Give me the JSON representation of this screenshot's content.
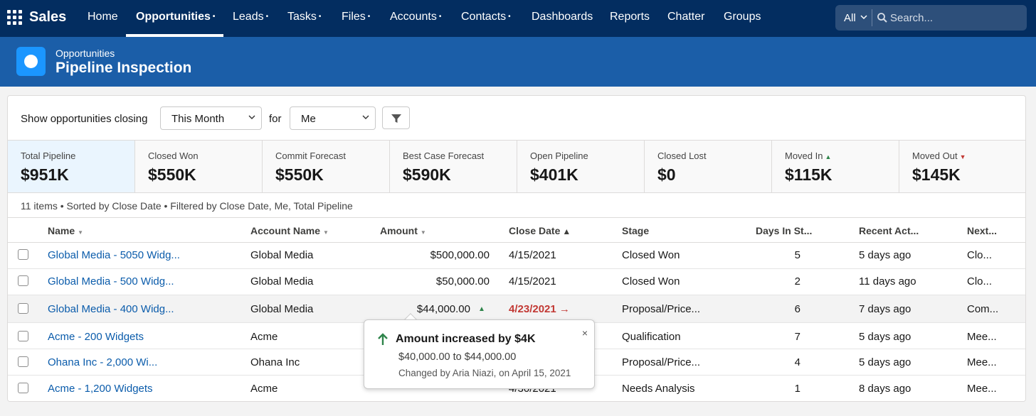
{
  "app": {
    "name": "Sales"
  },
  "nav": {
    "items": [
      {
        "label": "Home",
        "caret": ""
      },
      {
        "label": "Opportunities",
        "caret": "•"
      },
      {
        "label": "Leads",
        "caret": "•"
      },
      {
        "label": "Tasks",
        "caret": "•"
      },
      {
        "label": "Files",
        "caret": "•"
      },
      {
        "label": "Accounts",
        "caret": "•"
      },
      {
        "label": "Contacts",
        "caret": "•"
      },
      {
        "label": "Dashboards",
        "caret": ""
      },
      {
        "label": "Reports",
        "caret": ""
      },
      {
        "label": "Chatter",
        "caret": ""
      },
      {
        "label": "Groups",
        "caret": ""
      }
    ],
    "active": "Opportunities"
  },
  "search": {
    "scope": "All",
    "placeholder": "Search..."
  },
  "header": {
    "subtitle": "Opportunities",
    "title": "Pipeline Inspection"
  },
  "filters": {
    "label": "Show opportunities closing",
    "period": "This Month",
    "for_label": "for",
    "owner": "Me"
  },
  "metrics": [
    {
      "label": "Total Pipeline",
      "value": "$951K",
      "trend": ""
    },
    {
      "label": "Closed Won",
      "value": "$550K",
      "trend": ""
    },
    {
      "label": "Commit Forecast",
      "value": "$550K",
      "trend": ""
    },
    {
      "label": "Best Case Forecast",
      "value": "$590K",
      "trend": ""
    },
    {
      "label": "Open Pipeline",
      "value": "$401K",
      "trend": ""
    },
    {
      "label": "Closed Lost",
      "value": "$0",
      "trend": ""
    },
    {
      "label": "Moved In",
      "value": "$115K",
      "trend": "up"
    },
    {
      "label": "Moved Out",
      "value": "$145K",
      "trend": "down"
    }
  ],
  "list_info": "11 items • Sorted by Close Date • Filtered by Close Date, Me, Total Pipeline",
  "table": {
    "columns": [
      "Name",
      "Account Name",
      "Amount",
      "Close Date",
      "Stage",
      "Days In St...",
      "Recent Act...",
      "Next..."
    ],
    "rows": [
      {
        "name": "Global Media - 5050 Widg...",
        "account": "Global Media",
        "amount": "$500,000.00",
        "close_date": "4/15/2021",
        "stage": "Closed Won",
        "days": "5",
        "recent": "5 days ago",
        "next": "Clo..."
      },
      {
        "name": "Global Media - 500 Widg...",
        "account": "Global Media",
        "amount": "$50,000.00",
        "close_date": "4/15/2021",
        "stage": "Closed Won",
        "days": "2",
        "recent": "11 days ago",
        "next": "Clo..."
      },
      {
        "name": "Global Media - 400 Widg...",
        "account": "Global Media",
        "amount": "$44,000.00",
        "close_date": "4/23/2021",
        "stage": "Proposal/Price...",
        "days": "6",
        "recent": "7 days ago",
        "next": "Com..."
      },
      {
        "name": "Acme - 200 Widgets",
        "account": "Acme",
        "amount": "",
        "close_date": "",
        "stage": "Qualification",
        "days": "7",
        "recent": "5 days ago",
        "next": "Mee..."
      },
      {
        "name": "Ohana Inc - 2,000 Wi...",
        "account": "Ohana Inc",
        "amount": "",
        "close_date": "",
        "stage": "Proposal/Price...",
        "days": "4",
        "recent": "5 days ago",
        "next": "Mee..."
      },
      {
        "name": "Acme - 1,200 Widgets",
        "account": "Acme",
        "amount": "",
        "close_date": "4/30/2021",
        "stage": "Needs Analysis",
        "days": "1",
        "recent": "8 days ago",
        "next": "Mee..."
      }
    ]
  },
  "popover": {
    "title": "Amount increased by $4K",
    "change": "$40,000.00 to $44,000.00",
    "meta": "Changed by Aria Niazi, on April 15, 2021",
    "close": "×"
  },
  "colors": {
    "nav_bg": "#032d60",
    "header_bg": "#1b5ea8",
    "link": "#0b5cab",
    "increase": "#2e844a",
    "decrease": "#c23934",
    "selected_metric": "#eaf5fe"
  }
}
